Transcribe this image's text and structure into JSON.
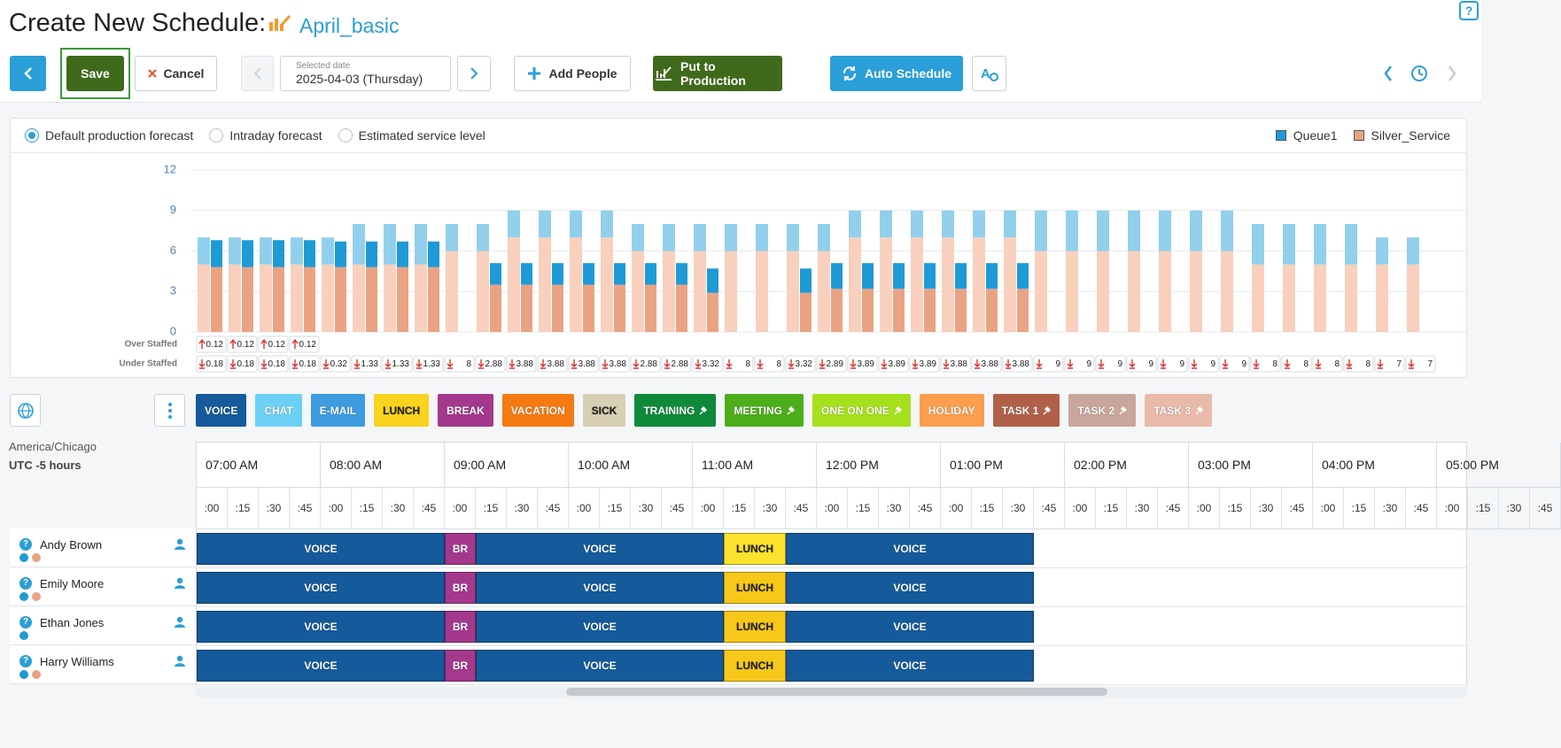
{
  "header": {
    "title": "Create New Schedule:",
    "schedule_name": "April_basic"
  },
  "toolbar": {
    "save": "Save",
    "cancel": "Cancel",
    "date_caption": "Selected date",
    "date": "2025-04-03 (Thursday)",
    "add_people": "Add People",
    "put_to_production": "Put to Production",
    "auto_schedule": "Auto Schedule"
  },
  "forecast_options": {
    "options": [
      "Default production forecast",
      "Intraday forecast",
      "Estimated service level"
    ],
    "selected": 0
  },
  "chart_data": {
    "type": "bar",
    "ylim": [
      0,
      12
    ],
    "yticks": [
      0,
      3,
      6,
      9,
      12
    ],
    "grid": true,
    "legend": "top-right",
    "categories": [
      null,
      null,
      null,
      null,
      null,
      null,
      null,
      null,
      null,
      null,
      null,
      null,
      null,
      null,
      null,
      null,
      null,
      null,
      null,
      null,
      null,
      null,
      null,
      null,
      null,
      null,
      null,
      null,
      null,
      null,
      null,
      null,
      null,
      null,
      null,
      null,
      null,
      null,
      null,
      null
    ],
    "series": [
      {
        "name": "Queue1",
        "color": "#1e9ad6",
        "light_color": "#92cfec",
        "values": [
          2,
          2,
          2,
          2,
          2,
          3,
          3,
          3,
          2,
          2,
          2,
          2,
          2,
          2,
          2,
          2,
          2,
          2,
          2,
          2,
          2,
          2,
          2,
          2,
          2,
          2,
          2,
          3,
          3,
          3,
          3,
          3,
          3,
          3,
          3,
          3,
          3,
          3,
          2,
          2
        ],
        "scheduled": [
          2,
          2,
          2,
          2,
          1.9,
          1.9,
          1.9,
          1.9,
          null,
          1.6,
          1.6,
          1.6,
          1.6,
          1.6,
          1.6,
          1.6,
          1.8,
          null,
          null,
          1.8,
          1.9,
          1.9,
          1.9,
          1.9,
          1.9,
          1.9,
          1.9,
          null,
          null,
          null,
          null,
          null,
          null,
          null,
          null,
          null,
          null,
          null,
          null,
          null
        ]
      },
      {
        "name": "Silver_Service",
        "color": "#e9a383",
        "light_color": "#f8d0bd",
        "values": [
          5,
          5,
          5,
          5,
          5,
          5,
          5,
          5,
          6,
          6,
          7,
          7,
          7,
          7,
          6,
          6,
          6,
          6,
          6,
          6,
          6,
          7,
          7,
          7,
          7,
          7,
          7,
          6,
          6,
          6,
          6,
          6,
          6,
          6,
          5,
          5,
          5,
          5,
          5,
          5
        ],
        "scheduled": [
          4.8,
          4.8,
          4.8,
          4.8,
          4.8,
          4.8,
          4.8,
          4.8,
          null,
          3.5,
          3.5,
          3.5,
          3.5,
          3.5,
          3.5,
          3.5,
          2.9,
          null,
          null,
          2.9,
          3.2,
          3.2,
          3.2,
          3.2,
          3.2,
          3.2,
          3.2,
          null,
          null,
          null,
          null,
          null,
          null,
          null,
          null,
          null,
          null,
          null,
          null,
          null
        ]
      }
    ],
    "over_staffed": {
      "label": "Over Staffed",
      "values": [
        0.12,
        0.12,
        0.12,
        0.12,
        null,
        null,
        null,
        null,
        null,
        null,
        null,
        null,
        null,
        null,
        null,
        null,
        null,
        null,
        null,
        null,
        null,
        null,
        null,
        null,
        null,
        null,
        null,
        null,
        null,
        null,
        null,
        null,
        null,
        null,
        null,
        null,
        null,
        null,
        null,
        null
      ]
    },
    "under_staffed": {
      "label": "Under Staffed",
      "values": [
        0.18,
        0.18,
        0.18,
        0.18,
        0.32,
        1.33,
        1.33,
        1.33,
        8,
        2.88,
        3.88,
        3.88,
        3.88,
        3.88,
        2.88,
        2.88,
        3.32,
        8,
        8,
        3.32,
        2.89,
        3.89,
        3.89,
        3.89,
        3.88,
        3.88,
        3.88,
        9,
        9,
        9,
        9,
        9,
        9,
        9,
        8,
        8,
        8,
        8,
        7,
        7
      ]
    }
  },
  "activities": [
    {
      "label": "VOICE",
      "color": "#155a9a",
      "text_color": "#ffffff",
      "pinned": false
    },
    {
      "label": "CHAT",
      "color": "#6dd0f5",
      "text_color": "#ffffff",
      "pinned": false
    },
    {
      "label": "E-MAIL",
      "color": "#3d9be0",
      "text_color": "#ffffff",
      "pinned": false
    },
    {
      "label": "LUNCH",
      "color": "#f9d31d",
      "text_color": "#222222",
      "pinned": false
    },
    {
      "label": "BREAK",
      "color": "#a3388c",
      "text_color": "#ffffff",
      "pinned": false
    },
    {
      "label": "VACATION",
      "color": "#f57a12",
      "text_color": "#ffffff",
      "pinned": false
    },
    {
      "label": "SICK",
      "color": "#d8d0b4",
      "text_color": "#222222",
      "pinned": false
    },
    {
      "label": "TRAINING",
      "color": "#0f8a3a",
      "text_color": "#ffffff",
      "pinned": true
    },
    {
      "label": "MEETING",
      "color": "#4cae1a",
      "text_color": "#ffffff",
      "pinned": true
    },
    {
      "label": "ONE ON ONE",
      "color": "#a6e01c",
      "text_color": "#ffffff",
      "pinned": true
    },
    {
      "label": "HOLIDAY",
      "color": "#fb9e4e",
      "text_color": "#ffffff",
      "pinned": false
    },
    {
      "label": "TASK 1",
      "color": "#b06048",
      "text_color": "#ffffff",
      "pinned": true
    },
    {
      "label": "TASK 2",
      "color": "#c9a69b",
      "text_color": "#ffffff",
      "pinned": true
    },
    {
      "label": "TASK 3",
      "color": "#e9b9a9",
      "text_color": "#ffffff",
      "pinned": true
    }
  ],
  "timezone": {
    "name": "America/Chicago",
    "offset": "UTC -5 hours"
  },
  "timeline": {
    "xlim": [
      7,
      17.25
    ],
    "hours": [
      {
        "value": 7,
        "label": "07:00 AM"
      },
      {
        "value": 8,
        "label": "08:00 AM"
      },
      {
        "value": 9,
        "label": "09:00 AM"
      },
      {
        "value": 10,
        "label": "10:00 AM"
      },
      {
        "value": 11,
        "label": "11:00 AM"
      },
      {
        "value": 12,
        "label": "12:00 PM"
      },
      {
        "value": 13,
        "label": "01:00 PM"
      },
      {
        "value": 14,
        "label": "02:00 PM"
      },
      {
        "value": 15,
        "label": "03:00 PM"
      },
      {
        "value": 16,
        "label": "04:00 PM"
      },
      {
        "value": 17,
        "label": "05:00 PM"
      }
    ],
    "quarters": [
      ":00",
      ":15",
      ":30",
      ":45"
    ]
  },
  "people": [
    {
      "name": "Andy Brown",
      "dots": [
        "#1e9ad6",
        "#e9a383"
      ],
      "shifts": [
        {
          "label": "VOICE",
          "color": "#155a9a",
          "start": 7,
          "end": 9
        },
        {
          "label": "BR",
          "color": "#a3388c",
          "start": 9,
          "end": 9.25
        },
        {
          "label": "VOICE",
          "color": "#155a9a",
          "start": 9.25,
          "end": 11.25
        },
        {
          "label": "LUNCH",
          "color": "#fbe22c",
          "start": 11.25,
          "end": 11.75
        },
        {
          "label": "VOICE",
          "color": "#155a9a",
          "start": 11.75,
          "end": 13.75
        }
      ]
    },
    {
      "name": "Emily Moore",
      "dots": [
        "#1e9ad6",
        "#e9a383"
      ],
      "shifts": [
        {
          "label": "VOICE",
          "color": "#155a9a",
          "start": 7,
          "end": 9
        },
        {
          "label": "BR",
          "color": "#a3388c",
          "start": 9,
          "end": 9.25
        },
        {
          "label": "VOICE",
          "color": "#155a9a",
          "start": 9.25,
          "end": 11.25
        },
        {
          "label": "LUNCH",
          "color": "#f6c81a",
          "start": 11.25,
          "end": 11.75
        },
        {
          "label": "VOICE",
          "color": "#155a9a",
          "start": 11.75,
          "end": 13.75
        }
      ]
    },
    {
      "name": "Ethan Jones",
      "dots": [
        "#1e9ad6"
      ],
      "shifts": [
        {
          "label": "VOICE",
          "color": "#155a9a",
          "start": 7,
          "end": 9
        },
        {
          "label": "BR",
          "color": "#a3388c",
          "start": 9,
          "end": 9.25
        },
        {
          "label": "VOICE",
          "color": "#155a9a",
          "start": 9.25,
          "end": 11.25
        },
        {
          "label": "LUNCH",
          "color": "#f6c81a",
          "start": 11.25,
          "end": 11.75
        },
        {
          "label": "VOICE",
          "color": "#155a9a",
          "start": 11.75,
          "end": 13.75
        }
      ]
    },
    {
      "name": "Harry Williams",
      "dots": [
        "#1e9ad6",
        "#e9a383"
      ],
      "shifts": [
        {
          "label": "VOICE",
          "color": "#155a9a",
          "start": 7,
          "end": 9
        },
        {
          "label": "BR",
          "color": "#a3388c",
          "start": 9,
          "end": 9.25
        },
        {
          "label": "VOICE",
          "color": "#155a9a",
          "start": 9.25,
          "end": 11.25
        },
        {
          "label": "LUNCH",
          "color": "#f6c81a",
          "start": 11.25,
          "end": 11.75
        },
        {
          "label": "VOICE",
          "color": "#155a9a",
          "start": 11.75,
          "end": 13.75
        }
      ]
    }
  ]
}
